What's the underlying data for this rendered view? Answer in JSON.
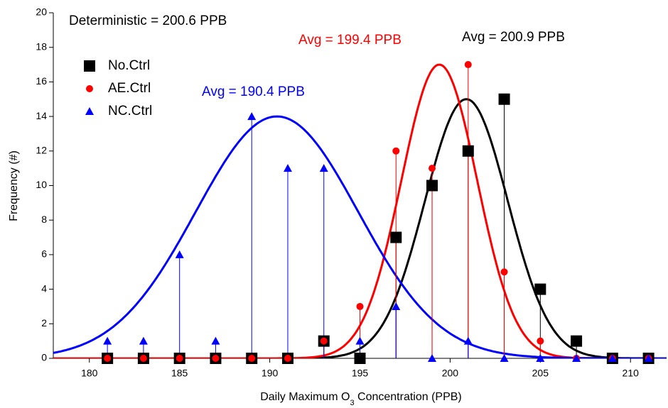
{
  "chart_data": {
    "type": "scatter",
    "x_label": [
      "Daily Maximum O",
      "3",
      " Concentration (PPB)"
    ],
    "y_label": "Frequency (#)",
    "annotations": [
      {
        "text": "Deterministic = 200.6 PPB",
        "color": "#000000"
      },
      {
        "text": "Avg = 199.4 PPB",
        "color": "#ff0000"
      },
      {
        "text": "Avg = 200.9 PPB",
        "color": "#000000"
      },
      {
        "text": "Avg = 190.4 PPB",
        "color": "#0000ff"
      }
    ],
    "x": [
      181,
      183,
      185,
      187,
      189,
      191,
      193,
      195,
      197,
      199,
      201,
      203,
      205,
      207,
      209,
      211
    ],
    "series": [
      {
        "name": "No.Ctrl",
        "color": "#000000",
        "marker": "square",
        "values": [
          0,
          0,
          0,
          0,
          0,
          0,
          1,
          0,
          7,
          10,
          12,
          15,
          4,
          1,
          0,
          0
        ],
        "fit": {
          "peak": 15,
          "mean": 200.9,
          "sigma": 2.3
        }
      },
      {
        "name": "AE.Ctrl",
        "color": "#ff0000",
        "marker": "circle",
        "values": [
          0,
          0,
          0,
          0,
          0,
          0,
          1,
          3,
          12,
          11,
          17,
          5,
          1,
          0,
          0,
          0
        ],
        "fit": {
          "peak": 17,
          "mean": 199.4,
          "sigma": 2.1
        }
      },
      {
        "name": "NC.Ctrl",
        "color": "#0000ff",
        "marker": "triangle",
        "values": [
          1,
          1,
          6,
          1,
          14,
          11,
          11,
          1,
          3,
          0,
          1,
          0,
          0,
          0,
          0,
          0
        ],
        "fit": {
          "peak": 14,
          "mean": 190.4,
          "sigma": 4.5
        }
      }
    ],
    "xlim": [
      178,
      212
    ],
    "xticks": [
      180,
      185,
      190,
      195,
      200,
      205,
      210
    ],
    "ylim": [
      0,
      20
    ],
    "yticks": [
      0,
      2,
      4,
      6,
      8,
      10,
      12,
      14,
      16,
      18,
      20
    ]
  }
}
